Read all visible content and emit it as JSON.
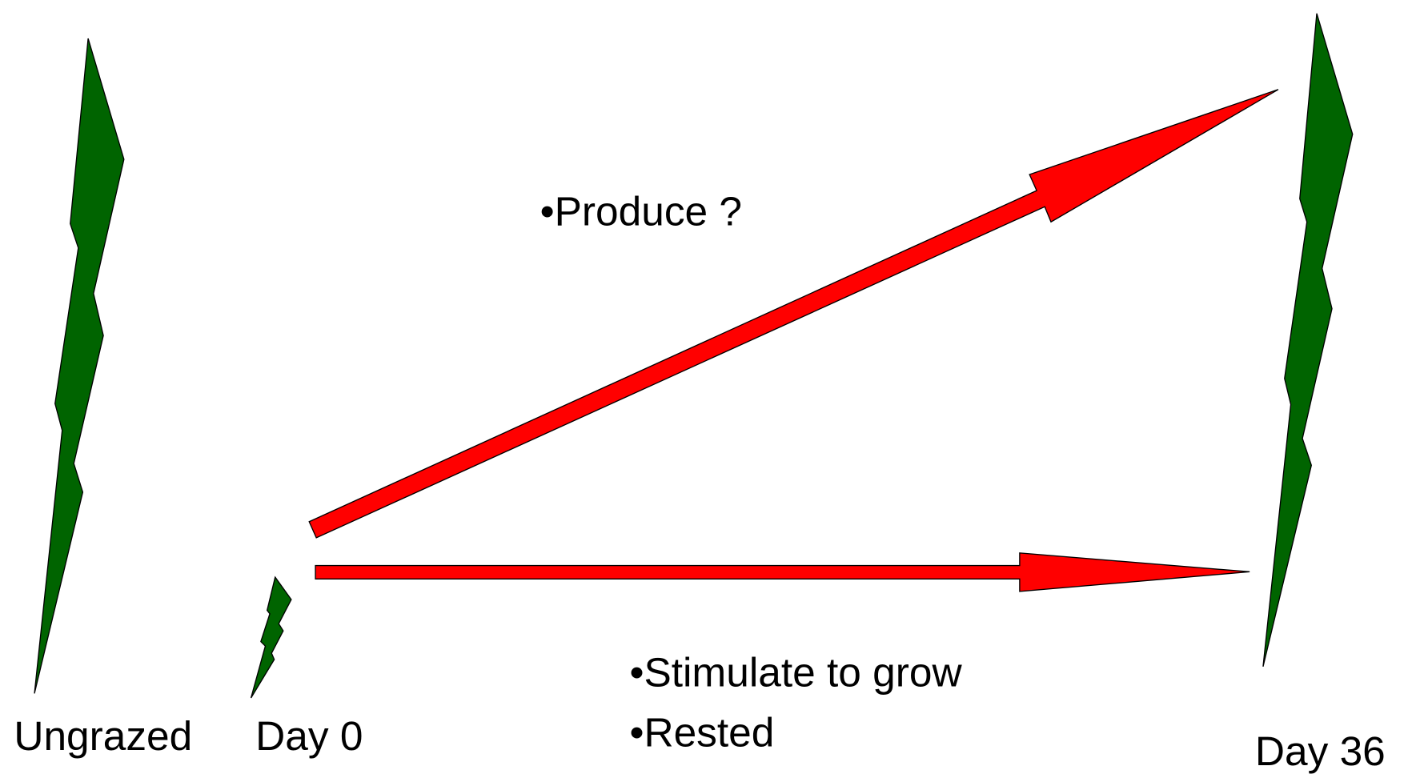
{
  "labels": {
    "left": "Ungrazed",
    "start": "Day 0",
    "end": "Day 36"
  },
  "notes": {
    "upper": "•Produce ?",
    "lower": [
      "•Stimulate to grow",
      "•Rested"
    ]
  }
}
